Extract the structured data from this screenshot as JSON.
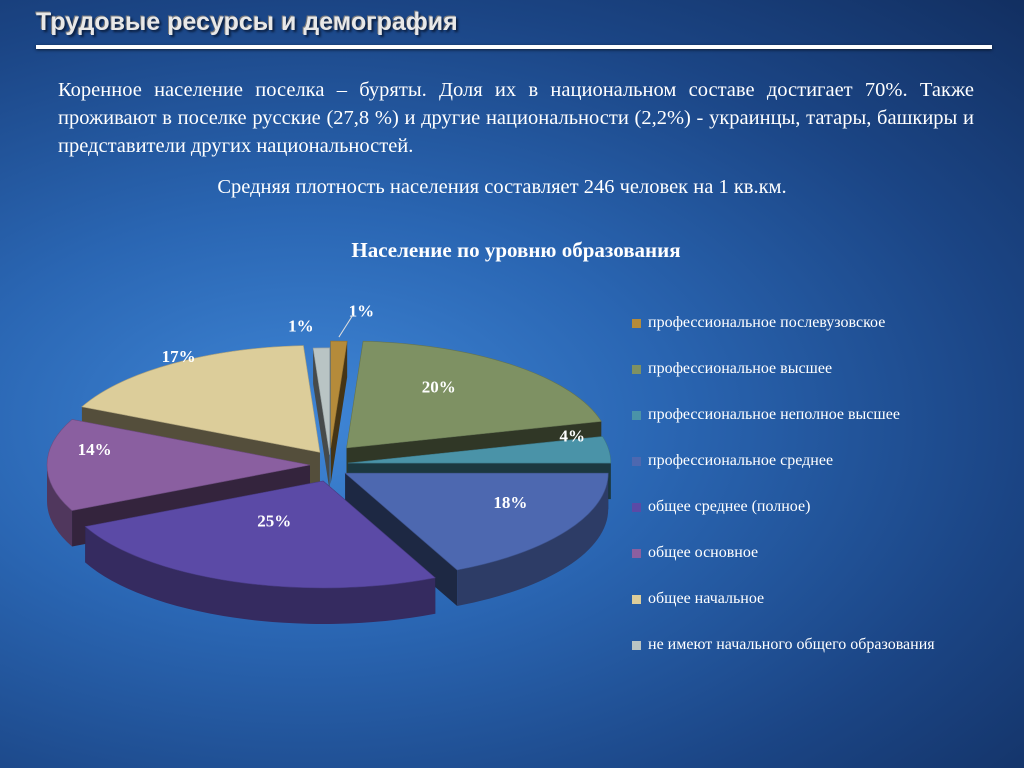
{
  "slide": {
    "title": "Трудовые ресурсы и демография",
    "paragraph": "Коренное население поселка – буряты. Доля их в национальном составе достигает 70%. Также проживают в поселке русские (27,8 %) и другие национальности (2,2%) - украинцы, татары, башкиры и представители других национальностей.",
    "density": "Средняя плотность населения составляет 246 человек на 1 кв.км."
  },
  "chart_data": {
    "type": "pie",
    "title": "Население по уровню образования",
    "legend_position": "right",
    "series": [
      {
        "name": "профессиональное послевузовское",
        "value": 1,
        "label": "1%",
        "color": "#b58b3a"
      },
      {
        "name": "профессиональное высшее",
        "value": 20,
        "label": "20%",
        "color": "#7e9163"
      },
      {
        "name": "профессиональное неполное высшее",
        "value": 4,
        "label": "4%",
        "color": "#4a93a8"
      },
      {
        "name": "профессиональное среднее",
        "value": 18,
        "label": "18%",
        "color": "#4d68b0"
      },
      {
        "name": "общее среднее (полное)",
        "value": 25,
        "label": "25%",
        "color": "#5b4aa6"
      },
      {
        "name": "общее основное",
        "value": 14,
        "label": "14%",
        "color": "#8a5fa0"
      },
      {
        "name": "общее начальное",
        "value": 17,
        "label": "17%",
        "color": "#dccd9a"
      },
      {
        "name": "не имеют начального общего образования",
        "value": 1,
        "label": "1%",
        "color": "#b9c4c4"
      }
    ]
  }
}
